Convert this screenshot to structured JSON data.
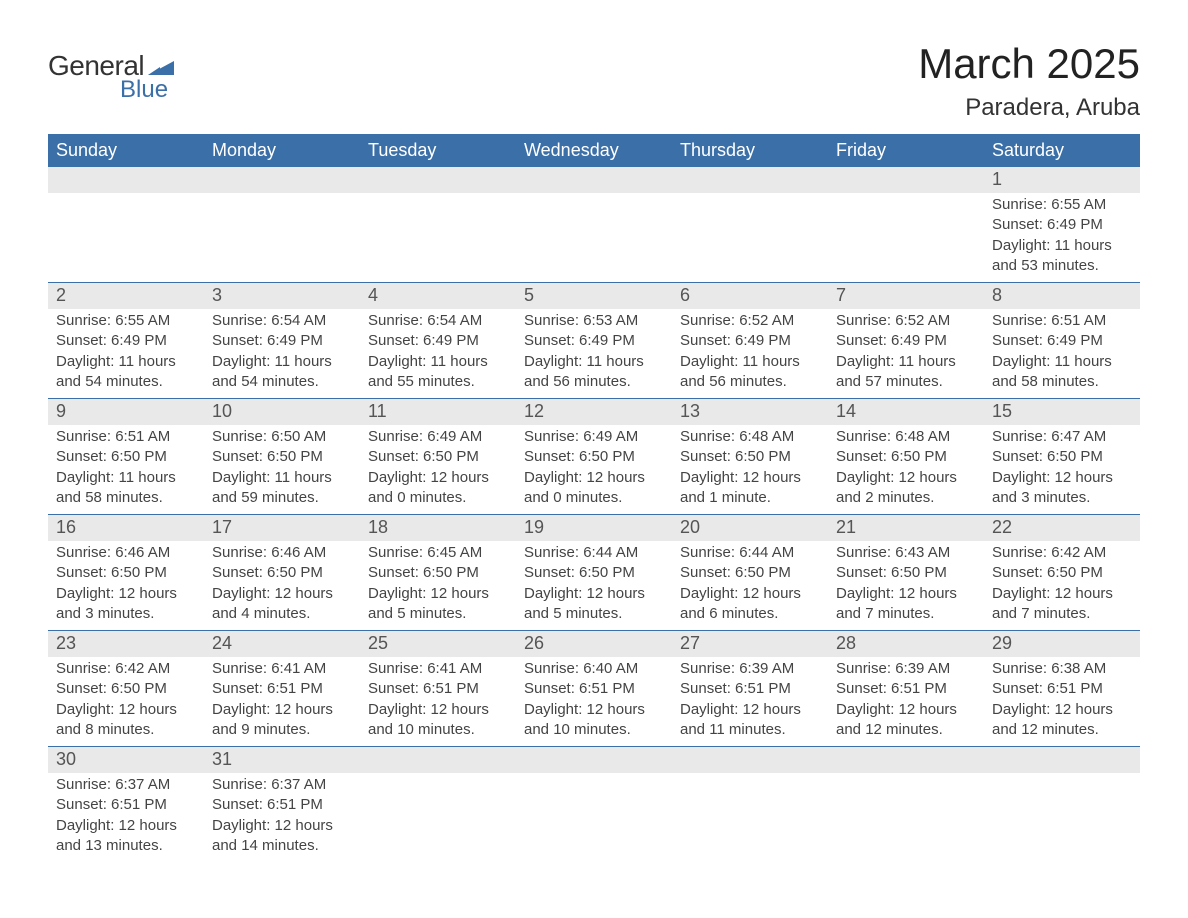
{
  "logo": {
    "text_general": "General",
    "text_blue": "Blue",
    "icon_color": "#3b6fa8"
  },
  "title": {
    "month": "March 2025",
    "location": "Paradera, Aruba"
  },
  "colors": {
    "header_bg": "#3b6fa8",
    "header_text": "#ffffff",
    "day_number_bg": "#e9e9e9",
    "day_number_text": "#555555",
    "body_text": "#444444",
    "row_border": "#3b6fa8",
    "background": "#ffffff"
  },
  "typography": {
    "month_title_fontsize": 42,
    "location_fontsize": 24,
    "header_cell_fontsize": 18,
    "day_number_fontsize": 18,
    "day_info_fontsize": 15
  },
  "headers": [
    "Sunday",
    "Monday",
    "Tuesday",
    "Wednesday",
    "Thursday",
    "Friday",
    "Saturday"
  ],
  "weeks": [
    [
      {
        "empty": true
      },
      {
        "empty": true
      },
      {
        "empty": true
      },
      {
        "empty": true
      },
      {
        "empty": true
      },
      {
        "empty": true
      },
      {
        "day": "1",
        "sunrise": "Sunrise: 6:55 AM",
        "sunset": "Sunset: 6:49 PM",
        "daylight": "Daylight: 11 hours and 53 minutes."
      }
    ],
    [
      {
        "day": "2",
        "sunrise": "Sunrise: 6:55 AM",
        "sunset": "Sunset: 6:49 PM",
        "daylight": "Daylight: 11 hours and 54 minutes."
      },
      {
        "day": "3",
        "sunrise": "Sunrise: 6:54 AM",
        "sunset": "Sunset: 6:49 PM",
        "daylight": "Daylight: 11 hours and 54 minutes."
      },
      {
        "day": "4",
        "sunrise": "Sunrise: 6:54 AM",
        "sunset": "Sunset: 6:49 PM",
        "daylight": "Daylight: 11 hours and 55 minutes."
      },
      {
        "day": "5",
        "sunrise": "Sunrise: 6:53 AM",
        "sunset": "Sunset: 6:49 PM",
        "daylight": "Daylight: 11 hours and 56 minutes."
      },
      {
        "day": "6",
        "sunrise": "Sunrise: 6:52 AM",
        "sunset": "Sunset: 6:49 PM",
        "daylight": "Daylight: 11 hours and 56 minutes."
      },
      {
        "day": "7",
        "sunrise": "Sunrise: 6:52 AM",
        "sunset": "Sunset: 6:49 PM",
        "daylight": "Daylight: 11 hours and 57 minutes."
      },
      {
        "day": "8",
        "sunrise": "Sunrise: 6:51 AM",
        "sunset": "Sunset: 6:49 PM",
        "daylight": "Daylight: 11 hours and 58 minutes."
      }
    ],
    [
      {
        "day": "9",
        "sunrise": "Sunrise: 6:51 AM",
        "sunset": "Sunset: 6:50 PM",
        "daylight": "Daylight: 11 hours and 58 minutes."
      },
      {
        "day": "10",
        "sunrise": "Sunrise: 6:50 AM",
        "sunset": "Sunset: 6:50 PM",
        "daylight": "Daylight: 11 hours and 59 minutes."
      },
      {
        "day": "11",
        "sunrise": "Sunrise: 6:49 AM",
        "sunset": "Sunset: 6:50 PM",
        "daylight": "Daylight: 12 hours and 0 minutes."
      },
      {
        "day": "12",
        "sunrise": "Sunrise: 6:49 AM",
        "sunset": "Sunset: 6:50 PM",
        "daylight": "Daylight: 12 hours and 0 minutes."
      },
      {
        "day": "13",
        "sunrise": "Sunrise: 6:48 AM",
        "sunset": "Sunset: 6:50 PM",
        "daylight": "Daylight: 12 hours and 1 minute."
      },
      {
        "day": "14",
        "sunrise": "Sunrise: 6:48 AM",
        "sunset": "Sunset: 6:50 PM",
        "daylight": "Daylight: 12 hours and 2 minutes."
      },
      {
        "day": "15",
        "sunrise": "Sunrise: 6:47 AM",
        "sunset": "Sunset: 6:50 PM",
        "daylight": "Daylight: 12 hours and 3 minutes."
      }
    ],
    [
      {
        "day": "16",
        "sunrise": "Sunrise: 6:46 AM",
        "sunset": "Sunset: 6:50 PM",
        "daylight": "Daylight: 12 hours and 3 minutes."
      },
      {
        "day": "17",
        "sunrise": "Sunrise: 6:46 AM",
        "sunset": "Sunset: 6:50 PM",
        "daylight": "Daylight: 12 hours and 4 minutes."
      },
      {
        "day": "18",
        "sunrise": "Sunrise: 6:45 AM",
        "sunset": "Sunset: 6:50 PM",
        "daylight": "Daylight: 12 hours and 5 minutes."
      },
      {
        "day": "19",
        "sunrise": "Sunrise: 6:44 AM",
        "sunset": "Sunset: 6:50 PM",
        "daylight": "Daylight: 12 hours and 5 minutes."
      },
      {
        "day": "20",
        "sunrise": "Sunrise: 6:44 AM",
        "sunset": "Sunset: 6:50 PM",
        "daylight": "Daylight: 12 hours and 6 minutes."
      },
      {
        "day": "21",
        "sunrise": "Sunrise: 6:43 AM",
        "sunset": "Sunset: 6:50 PM",
        "daylight": "Daylight: 12 hours and 7 minutes."
      },
      {
        "day": "22",
        "sunrise": "Sunrise: 6:42 AM",
        "sunset": "Sunset: 6:50 PM",
        "daylight": "Daylight: 12 hours and 7 minutes."
      }
    ],
    [
      {
        "day": "23",
        "sunrise": "Sunrise: 6:42 AM",
        "sunset": "Sunset: 6:50 PM",
        "daylight": "Daylight: 12 hours and 8 minutes."
      },
      {
        "day": "24",
        "sunrise": "Sunrise: 6:41 AM",
        "sunset": "Sunset: 6:51 PM",
        "daylight": "Daylight: 12 hours and 9 minutes."
      },
      {
        "day": "25",
        "sunrise": "Sunrise: 6:41 AM",
        "sunset": "Sunset: 6:51 PM",
        "daylight": "Daylight: 12 hours and 10 minutes."
      },
      {
        "day": "26",
        "sunrise": "Sunrise: 6:40 AM",
        "sunset": "Sunset: 6:51 PM",
        "daylight": "Daylight: 12 hours and 10 minutes."
      },
      {
        "day": "27",
        "sunrise": "Sunrise: 6:39 AM",
        "sunset": "Sunset: 6:51 PM",
        "daylight": "Daylight: 12 hours and 11 minutes."
      },
      {
        "day": "28",
        "sunrise": "Sunrise: 6:39 AM",
        "sunset": "Sunset: 6:51 PM",
        "daylight": "Daylight: 12 hours and 12 minutes."
      },
      {
        "day": "29",
        "sunrise": "Sunrise: 6:38 AM",
        "sunset": "Sunset: 6:51 PM",
        "daylight": "Daylight: 12 hours and 12 minutes."
      }
    ],
    [
      {
        "day": "30",
        "sunrise": "Sunrise: 6:37 AM",
        "sunset": "Sunset: 6:51 PM",
        "daylight": "Daylight: 12 hours and 13 minutes."
      },
      {
        "day": "31",
        "sunrise": "Sunrise: 6:37 AM",
        "sunset": "Sunset: 6:51 PM",
        "daylight": "Daylight: 12 hours and 14 minutes."
      },
      {
        "empty": true
      },
      {
        "empty": true
      },
      {
        "empty": true
      },
      {
        "empty": true
      },
      {
        "empty": true
      }
    ]
  ]
}
